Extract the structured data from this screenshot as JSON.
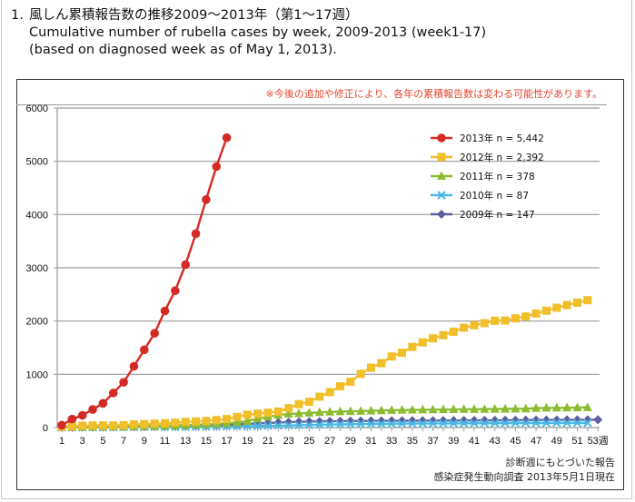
{
  "header": {
    "number": "1.",
    "title_jp": "風しん累積報告数の推移2009～2013年（第1～17週）",
    "title_en": "Cumulative number of rubella cases by week, 2009-2013 (week1-17)",
    "subtitle_en": "(based on diagnosed week as of May 1, 2013)."
  },
  "note": "※今後の追加や修正により、各年の累積報告数は変わる可能性があります。",
  "source": {
    "line1": "診断週にもとづいた報告",
    "line2": "感染症発生動向調査 2013年5月1日現在"
  },
  "chart_data": {
    "type": "line",
    "title": "Cumulative number of rubella cases by week, 2009-2013 (week1-17)",
    "xlabel": "週",
    "ylabel": "",
    "xlim": [
      1,
      53
    ],
    "ylim": [
      0,
      6000
    ],
    "yticks": [
      0,
      1000,
      2000,
      3000,
      4000,
      5000,
      6000
    ],
    "xticks": [
      1,
      3,
      5,
      7,
      9,
      11,
      13,
      15,
      17,
      19,
      21,
      23,
      25,
      27,
      29,
      31,
      33,
      35,
      37,
      39,
      41,
      43,
      45,
      47,
      49,
      51,
      53
    ],
    "xtick_last_suffix": "週",
    "grid": "horizontal",
    "legend_position": "top-right",
    "series": [
      {
        "name": "2013年 n = 5,442",
        "color": "#d42a25",
        "marker": "circle",
        "start_week": 1,
        "values": [
          45,
          160,
          230,
          340,
          455,
          650,
          850,
          1150,
          1460,
          1770,
          2190,
          2570,
          3060,
          3640,
          4280,
          4900,
          5442
        ]
      },
      {
        "name": "2012年 n = 2,392",
        "color": "#f0bf2a",
        "marker": "square",
        "start_week": 1,
        "values": [
          15,
          25,
          35,
          40,
          40,
          40,
          45,
          60,
          65,
          75,
          80,
          90,
          105,
          115,
          125,
          140,
          160,
          200,
          240,
          260,
          280,
          300,
          365,
          440,
          485,
          580,
          665,
          775,
          860,
          1010,
          1125,
          1210,
          1335,
          1405,
          1515,
          1600,
          1675,
          1735,
          1800,
          1875,
          1920,
          1960,
          2005,
          2010,
          2050,
          2085,
          2140,
          2195,
          2250,
          2300,
          2345,
          2392
        ]
      },
      {
        "name": "2011年 n = 378",
        "color": "#8dbb2f",
        "marker": "triangle",
        "start_week": 1,
        "values": [
          5,
          8,
          10,
          12,
          14,
          16,
          18,
          22,
          26,
          30,
          34,
          40,
          46,
          52,
          60,
          70,
          80,
          95,
          120,
          165,
          200,
          235,
          255,
          265,
          275,
          285,
          295,
          300,
          305,
          310,
          315,
          320,
          325,
          330,
          332,
          334,
          336,
          338,
          340,
          342,
          344,
          346,
          348,
          350,
          352,
          354,
          365,
          368,
          370,
          372,
          375,
          378
        ]
      },
      {
        "name": "2010年 n = 87",
        "color": "#49b8e4",
        "marker": "x",
        "start_week": 1,
        "values": [
          2,
          3,
          4,
          5,
          6,
          7,
          8,
          9,
          10,
          11,
          12,
          13,
          14,
          15,
          16,
          18,
          20,
          22,
          25,
          28,
          32,
          36,
          40,
          44,
          48,
          52,
          56,
          60,
          63,
          66,
          68,
          70,
          72,
          74,
          75,
          76,
          77,
          78,
          79,
          80,
          81,
          82,
          83,
          83,
          84,
          84,
          85,
          85,
          86,
          86,
          87,
          87
        ]
      },
      {
        "name": "2009年 n = 147",
        "color": "#5e5e9e",
        "marker": "diamond",
        "start_week": 1,
        "values": [
          3,
          5,
          7,
          9,
          11,
          13,
          15,
          17,
          20,
          23,
          26,
          30,
          34,
          38,
          42,
          48,
          55,
          62,
          70,
          78,
          86,
          95,
          102,
          108,
          112,
          116,
          118,
          120,
          122,
          124,
          125,
          126,
          127,
          128,
          129,
          130,
          131,
          132,
          133,
          134,
          135,
          136,
          137,
          138,
          139,
          140,
          141,
          142,
          143,
          144,
          145,
          146,
          147
        ]
      }
    ]
  }
}
